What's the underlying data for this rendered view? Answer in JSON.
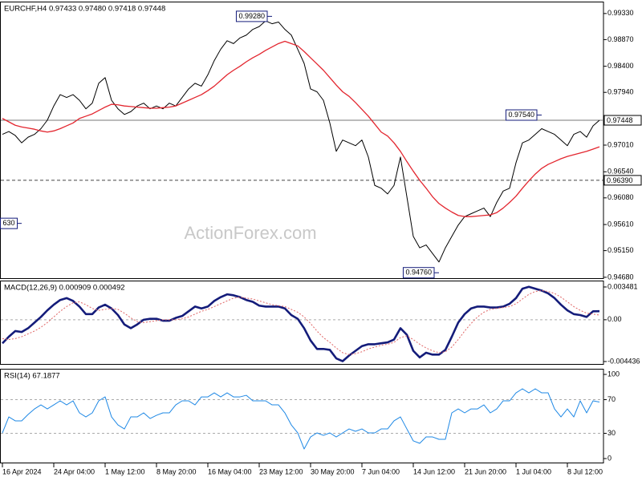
{
  "chart_data": [
    {
      "type": "line",
      "title": "EURCHF,H4 0.97433 0.97480 0.97418 0.97448",
      "categories": [
        "16 Apr 2024",
        null,
        null,
        null,
        null,
        null,
        null,
        null,
        "24 Apr 04:00",
        null,
        null,
        null,
        null,
        null,
        null,
        null,
        "1 May 12:00",
        null,
        null,
        null,
        null,
        null,
        null,
        null,
        "8 May 20:00",
        null,
        null,
        null,
        null,
        null,
        null,
        null,
        "16 May 04:00",
        null,
        null,
        null,
        null,
        null,
        null,
        null,
        "23 May 12:00",
        null,
        null,
        null,
        null,
        null,
        null,
        null,
        "30 May 20:00",
        null,
        null,
        null,
        null,
        null,
        null,
        null,
        "7 Jun 04:00",
        null,
        null,
        null,
        null,
        null,
        null,
        null,
        "14 Jun 12:00",
        null,
        null,
        null,
        null,
        null,
        null,
        null,
        "21 Jun 20:00",
        null,
        null,
        null,
        null,
        null,
        null,
        null,
        "1 Jul 04:00",
        null,
        null,
        null,
        null,
        null,
        null,
        null,
        "8 Jul 12:00",
        null,
        null,
        null,
        null,
        null
      ],
      "series": [
        {
          "color": "#000000",
          "values": [
            0.972,
            0.9725,
            0.9718,
            0.9705,
            0.9715,
            0.972,
            0.973,
            0.9745,
            0.977,
            0.979,
            0.9785,
            0.979,
            0.978,
            0.9765,
            0.9775,
            0.981,
            0.982,
            0.978,
            0.9765,
            0.9755,
            0.976,
            0.977,
            0.9775,
            0.9765,
            0.977,
            0.9765,
            0.9775,
            0.977,
            0.9785,
            0.98,
            0.981,
            0.9805,
            0.9825,
            0.985,
            0.987,
            0.9885,
            0.988,
            0.989,
            0.9895,
            0.9905,
            0.991,
            0.992,
            0.9915,
            0.9918,
            0.9905,
            0.9895,
            0.987,
            0.9845,
            0.98,
            0.9795,
            0.978,
            0.974,
            0.969,
            0.971,
            0.9705,
            0.97,
            0.971,
            0.968,
            0.963,
            0.9625,
            0.9615,
            0.963,
            0.968,
            0.961,
            0.954,
            0.952,
            0.9525,
            0.951,
            0.9495,
            0.952,
            0.954,
            0.956,
            0.9575,
            0.958,
            0.9585,
            0.959,
            0.9575,
            0.96,
            0.962,
            0.9625,
            0.967,
            0.9705,
            0.971,
            0.972,
            0.973,
            0.9725,
            0.972,
            0.971,
            0.97,
            0.972,
            0.9725,
            0.9715,
            0.9735,
            0.97448
          ]
        },
        {
          "color": "#e3262f",
          "values": [
            0.9748,
            0.9742,
            0.9736,
            0.9733,
            0.9731,
            0.9729,
            0.9726,
            0.9724,
            0.9726,
            0.973,
            0.9735,
            0.974,
            0.9748,
            0.9752,
            0.9756,
            0.9762,
            0.9768,
            0.9773,
            0.9772,
            0.977,
            0.9769,
            0.9768,
            0.9767,
            0.9766,
            0.9766,
            0.9767,
            0.9768,
            0.977,
            0.9775,
            0.978,
            0.9785,
            0.979,
            0.9797,
            0.9805,
            0.9815,
            0.9825,
            0.9833,
            0.984,
            0.9848,
            0.9855,
            0.9861,
            0.9868,
            0.9874,
            0.988,
            0.9884,
            0.988,
            0.9876,
            0.9866,
            0.9855,
            0.9844,
            0.9833,
            0.982,
            0.9807,
            0.9795,
            0.9787,
            0.9776,
            0.9764,
            0.9752,
            0.9738,
            0.9724,
            0.9717,
            0.9705,
            0.969,
            0.9672,
            0.9655,
            0.9639,
            0.9625,
            0.961,
            0.9598,
            0.959,
            0.9583,
            0.9577,
            0.9575,
            0.9575,
            0.9576,
            0.9577,
            0.9578,
            0.9582,
            0.959,
            0.96,
            0.9611,
            0.9625,
            0.9638,
            0.965,
            0.966,
            0.9667,
            0.9672,
            0.9677,
            0.9681,
            0.9684,
            0.9687,
            0.969,
            0.9694,
            0.9698
          ]
        }
      ],
      "ylim": [
        0.9465,
        0.9954
      ],
      "yticks": [
        {
          "value": 0.9933,
          "label": "0.99330"
        },
        {
          "value": 0.9887,
          "label": "0.98870"
        },
        {
          "value": 0.984,
          "label": "0.98400"
        },
        {
          "value": 0.9794,
          "label": "0.97940"
        },
        {
          "value": 0.9701,
          "label": "0.97010"
        },
        {
          "value": 0.9654,
          "label": "0.96540"
        },
        {
          "value": 0.9608,
          "label": "0.96080"
        },
        {
          "value": 0.9561,
          "label": "0.95610"
        },
        {
          "value": 0.9515,
          "label": "0.95150"
        },
        {
          "value": 0.9468,
          "label": "0.94680"
        }
      ],
      "price_lines": [
        {
          "value": 0.97448,
          "label": "0.97448",
          "style": "solid"
        },
        {
          "value": 0.9639,
          "label": "0.96390",
          "style": "dashed"
        }
      ],
      "annotations": [
        {
          "label": "0.99280",
          "value": 0.9928,
          "index": 42
        },
        {
          "label": "0.97540",
          "value": 0.9754,
          "index": 84
        },
        {
          "label": "0.94760",
          "value": 0.9476,
          "index": 68
        },
        {
          "label": "630",
          "value": 0.9563,
          "index": 3
        }
      ],
      "watermark": "ActionForex.com"
    },
    {
      "type": "line",
      "title": "MACD(12,26,9) 0.000909 0.000492",
      "series": [
        {
          "color": "#141c7a",
          "values": [
            -0.0025,
            -0.0018,
            -0.0012,
            -0.0013,
            -0.0009,
            -0.0003,
            0.0003,
            0.001,
            0.0016,
            0.0021,
            0.0023,
            0.002,
            0.0014,
            0.0006,
            0.0006,
            0.0013,
            0.0016,
            0.0012,
            0.0005,
            -0.0005,
            -0.0009,
            -0.0005,
            0,
            0.0001,
            0.0001,
            -0.0001,
            -0.0001,
            0.0002,
            0.0004,
            0.0009,
            0.0014,
            0.0012,
            0.0014,
            0.002,
            0.0024,
            0.0027,
            0.0026,
            0.0024,
            0.0021,
            0.0019,
            0.0015,
            0.0014,
            0.0014,
            0.0014,
            0.0012,
            0.0005,
            0.0001,
            -0.0009,
            -0.0022,
            -0.0031,
            -0.0031,
            -0.0032,
            -0.0041,
            -0.0044,
            -0.0038,
            -0.0033,
            -0.0028,
            -0.0026,
            -0.0026,
            -0.0025,
            -0.0024,
            -0.0021,
            -0.0009,
            -0.0016,
            -0.0033,
            -0.004,
            -0.0035,
            -0.0037,
            -0.0037,
            -0.0032,
            -0.0018,
            -0.0003,
            0.0006,
            0.0012,
            0.0014,
            0.0014,
            0.0013,
            0.0013,
            0.0014,
            0.0017,
            0.0023,
            0.0033,
            0.0035,
            0.0033,
            0.0031,
            0.0028,
            0.0023,
            0.0016,
            0.001,
            0.0006,
            0.0005,
            0.0003,
            0.0009,
            0.000909
          ]
        },
        {
          "color": "#e06666",
          "dash": true,
          "values": [
            -0.002,
            -0.0021,
            -0.002,
            -0.0018,
            -0.0015,
            -0.0012,
            -0.0008,
            -0.0003,
            0.0003,
            0.0009,
            0.0014,
            0.0018,
            0.0019,
            0.0016,
            0.0012,
            0.001,
            0.0011,
            0.0012,
            0.0011,
            0.0007,
            0.0002,
            -0.0002,
            -0.0003,
            -0.0002,
            -0.0001,
            0,
            0,
            0,
            0.0001,
            0.0003,
            0.0006,
            0.0009,
            0.0011,
            0.0014,
            0.0017,
            0.002,
            0.0023,
            0.0024,
            0.0023,
            0.0022,
            0.002,
            0.0018,
            0.0016,
            0.0015,
            0.0014,
            0.0011,
            0.0008,
            0.0003,
            -0.0004,
            -0.0012,
            -0.0019,
            -0.0024,
            -0.003,
            -0.0035,
            -0.0037,
            -0.0036,
            -0.0034,
            -0.0031,
            -0.0029,
            -0.0027,
            -0.0026,
            -0.0024,
            -0.0019,
            -0.0017,
            -0.0021,
            -0.0026,
            -0.003,
            -0.0033,
            -0.0035,
            -0.0034,
            -0.0029,
            -0.0021,
            -0.0012,
            -0.0004,
            0.0003,
            0.0008,
            0.0011,
            0.0012,
            0.0013,
            0.0014,
            0.0017,
            0.0022,
            0.0027,
            0.003,
            0.0031,
            0.003,
            0.0028,
            0.0024,
            0.0019,
            0.0014,
            0.001,
            0.0007,
            0.0006,
            0.000492
          ]
        }
      ],
      "ylim": [
        -0.00478,
        0.00416
      ],
      "yticks": [
        0.003481,
        {
          "value": 0,
          "label": "0.00"
        },
        -0.004436
      ],
      "levels": [
        0
      ]
    },
    {
      "type": "line",
      "title": "RSI(14) 67.1877",
      "series": [
        {
          "color": "#1e88e5",
          "values": [
            30.5,
            49.5,
            44.8,
            44.8,
            52.4,
            59,
            63.8,
            59,
            63.8,
            68.6,
            63.8,
            68.6,
            54.3,
            49.5,
            54.3,
            68.6,
            73.3,
            49.5,
            40,
            35.2,
            49.5,
            49.5,
            54.3,
            47.6,
            51.4,
            54.3,
            54.3,
            63.8,
            68.6,
            68.6,
            63.8,
            73.3,
            73.3,
            78.1,
            73.3,
            78.1,
            73.3,
            73.3,
            75.2,
            68.6,
            68.6,
            68.6,
            63.8,
            63.8,
            54.3,
            40,
            30.5,
            11.4,
            25.7,
            30.5,
            27.6,
            30.5,
            25.7,
            30.5,
            35.2,
            32.4,
            35.2,
            30.5,
            30.5,
            35.2,
            35.2,
            44.8,
            49.5,
            35.2,
            21,
            18.1,
            25.7,
            25.7,
            22.9,
            22.9,
            54.3,
            59,
            54.3,
            59,
            59,
            63.8,
            54.3,
            59,
            68.6,
            68.6,
            78.1,
            82.9,
            78.1,
            82.9,
            78.1,
            78.1,
            59,
            49.5,
            59,
            49.5,
            68.6,
            54.3,
            68.6,
            67.1877
          ]
        }
      ],
      "ylim": [
        -5.7,
        106.7
      ],
      "yticks": [
        100,
        70,
        30,
        0
      ],
      "levels": [
        70,
        30
      ]
    }
  ]
}
